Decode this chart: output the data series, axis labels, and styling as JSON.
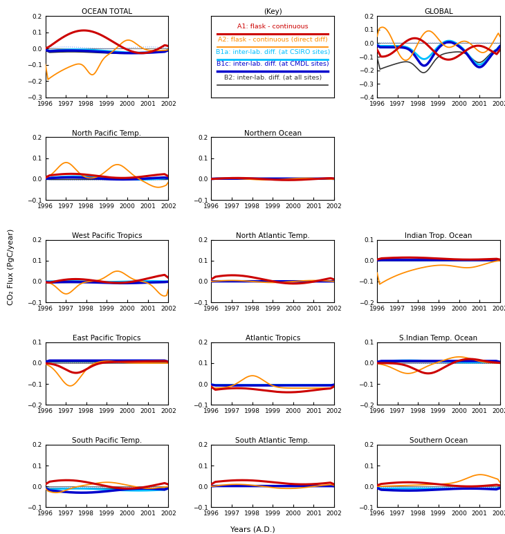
{
  "colors": {
    "A1": "#cc0000",
    "A2": "#ff8c00",
    "B1a": "#00bfff",
    "B1c": "#0000cc",
    "B2": "#333333",
    "dotted": "#6699ff"
  },
  "lw": {
    "A1": 2.2,
    "A2": 1.3,
    "B1a": 2.0,
    "B1c": 2.5,
    "B2": 1.2
  },
  "legend_labels": [
    "A1: flask - continuous",
    "A2: flask - continuous (direct diff)",
    "B1a: inter-lab. diff. (at CSIRO sites)",
    "B1c: inter-lab. diff. (at CMDL sites)",
    "B2: inter-lab. diff. (at all sites)"
  ],
  "legend_colors": [
    "#cc0000",
    "#ff8c00",
    "#00bfff",
    "#0000cc",
    "#333333"
  ],
  "legend_lw": [
    2.2,
    1.3,
    2.0,
    2.5,
    1.2
  ],
  "ylims": {
    "OCEAN TOTAL": [
      -0.3,
      0.2
    ],
    "GLOBAL": [
      -0.4,
      0.2
    ],
    "North Pacific Temp.": [
      -0.1,
      0.2
    ],
    "Northern Ocean": [
      -0.1,
      0.2
    ],
    "West Pacific Tropics": [
      -0.1,
      0.2
    ],
    "North Atlantic Temp.": [
      -0.1,
      0.2
    ],
    "Indian Trop. Ocean": [
      -0.2,
      0.1
    ],
    "East Pacific Tropics": [
      -0.2,
      0.1
    ],
    "Atlantic Tropics": [
      -0.1,
      0.2
    ],
    "S.Indian Temp. Ocean": [
      -0.2,
      0.1
    ],
    "South Pacific Temp.": [
      -0.1,
      0.2
    ],
    "South Atlantic Temp.": [
      -0.1,
      0.2
    ],
    "Southern Ocean": [
      -0.1,
      0.2
    ]
  },
  "xlim": [
    1996,
    2002
  ],
  "ylabel": "CO₂ Flux (PgC/year)",
  "xlabel": "Years (A.D.)"
}
